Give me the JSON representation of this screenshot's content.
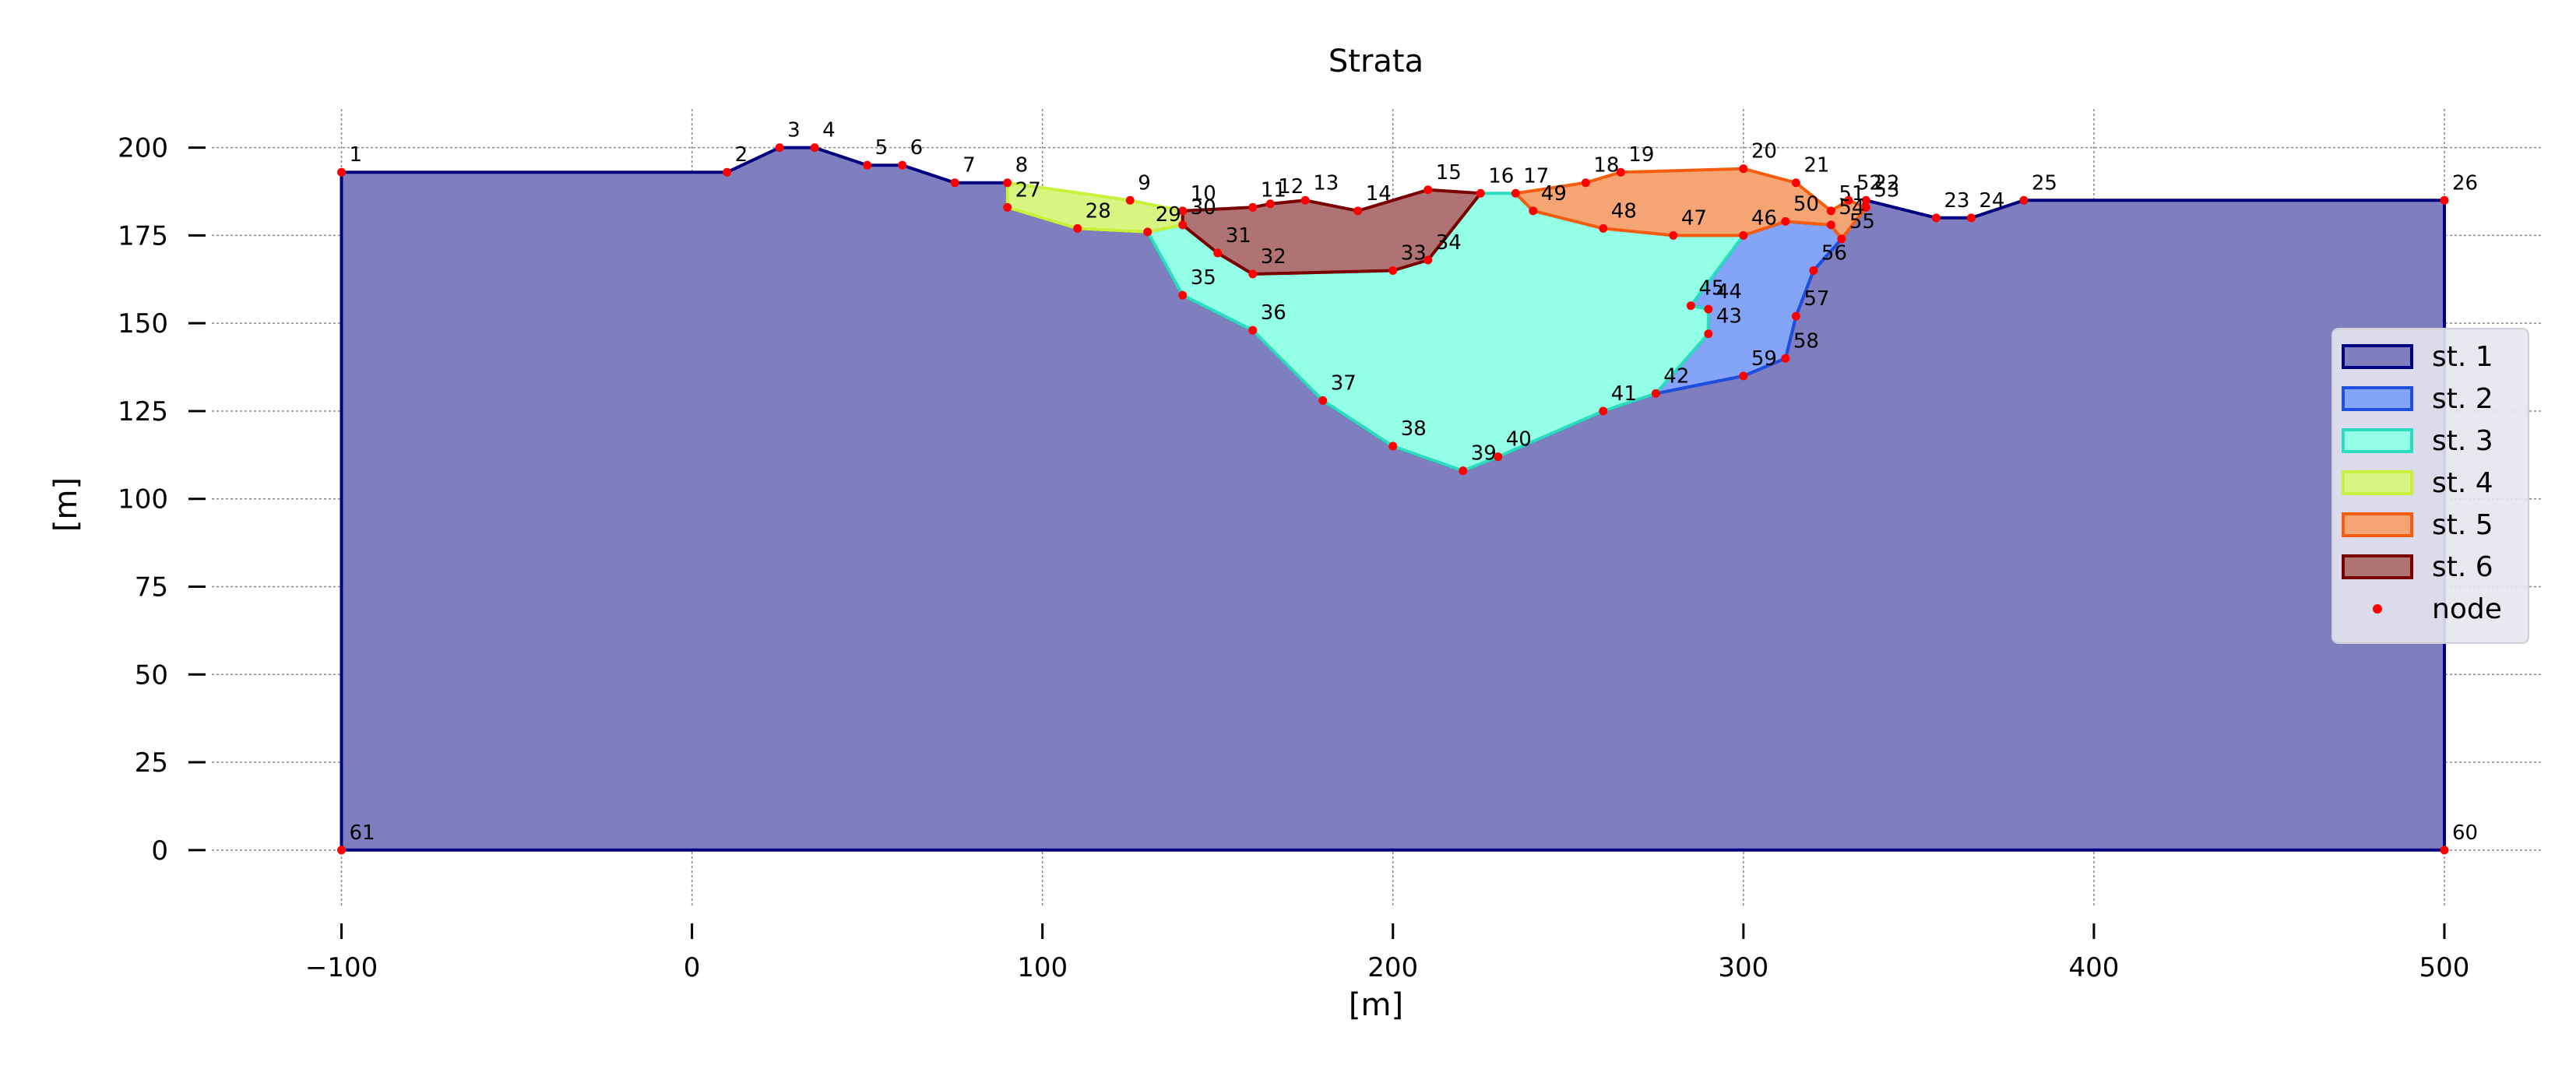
{
  "chart_data": {
    "type": "area",
    "title": "Strata",
    "xlabel": "[m]",
    "ylabel": "[m]",
    "xlim": [
      -137,
      528
    ],
    "ylim": [
      -16,
      211
    ],
    "xticks": [
      -100,
      0,
      100,
      200,
      300,
      400,
      500
    ],
    "yticks": [
      0,
      25,
      50,
      75,
      100,
      125,
      150,
      175,
      200
    ],
    "grid": true,
    "legend_placement": "right",
    "legend": [
      "st. 1",
      "st. 2",
      "st. 3",
      "st. 4",
      "st. 5",
      "st. 6",
      "node"
    ],
    "nodes": [
      {
        "id": "1",
        "x": -100,
        "y": 193
      },
      {
        "id": "2",
        "x": 10,
        "y": 193
      },
      {
        "id": "3",
        "x": 25,
        "y": 200
      },
      {
        "id": "4",
        "x": 35,
        "y": 200
      },
      {
        "id": "5",
        "x": 50,
        "y": 195
      },
      {
        "id": "6",
        "x": 60,
        "y": 195
      },
      {
        "id": "7",
        "x": 75,
        "y": 190
      },
      {
        "id": "8",
        "x": 90,
        "y": 190
      },
      {
        "id": "9",
        "x": 125,
        "y": 185
      },
      {
        "id": "10",
        "x": 140,
        "y": 182
      },
      {
        "id": "11",
        "x": 160,
        "y": 183
      },
      {
        "id": "12",
        "x": 165,
        "y": 184
      },
      {
        "id": "13",
        "x": 175,
        "y": 185
      },
      {
        "id": "14",
        "x": 190,
        "y": 182
      },
      {
        "id": "15",
        "x": 210,
        "y": 188
      },
      {
        "id": "16",
        "x": 225,
        "y": 187
      },
      {
        "id": "17",
        "x": 235,
        "y": 187
      },
      {
        "id": "18",
        "x": 255,
        "y": 190
      },
      {
        "id": "19",
        "x": 265,
        "y": 193
      },
      {
        "id": "20",
        "x": 300,
        "y": 194
      },
      {
        "id": "21",
        "x": 315,
        "y": 190
      },
      {
        "id": "22",
        "x": 335,
        "y": 185
      },
      {
        "id": "23",
        "x": 355,
        "y": 180
      },
      {
        "id": "24",
        "x": 365,
        "y": 180
      },
      {
        "id": "25",
        "x": 380,
        "y": 185
      },
      {
        "id": "26",
        "x": 500,
        "y": 185
      },
      {
        "id": "27",
        "x": 90,
        "y": 183
      },
      {
        "id": "28",
        "x": 110,
        "y": 177
      },
      {
        "id": "29",
        "x": 130,
        "y": 176
      },
      {
        "id": "30",
        "x": 140,
        "y": 178
      },
      {
        "id": "31",
        "x": 150,
        "y": 170
      },
      {
        "id": "32",
        "x": 160,
        "y": 164
      },
      {
        "id": "33",
        "x": 200,
        "y": 165
      },
      {
        "id": "34",
        "x": 210,
        "y": 168
      },
      {
        "id": "35",
        "x": 140,
        "y": 158
      },
      {
        "id": "36",
        "x": 160,
        "y": 148
      },
      {
        "id": "37",
        "x": 180,
        "y": 128
      },
      {
        "id": "38",
        "x": 200,
        "y": 115
      },
      {
        "id": "39",
        "x": 220,
        "y": 108
      },
      {
        "id": "40",
        "x": 230,
        "y": 112
      },
      {
        "id": "41",
        "x": 260,
        "y": 125
      },
      {
        "id": "42",
        "x": 275,
        "y": 130
      },
      {
        "id": "43",
        "x": 290,
        "y": 147
      },
      {
        "id": "44",
        "x": 290,
        "y": 154
      },
      {
        "id": "45",
        "x": 285,
        "y": 155
      },
      {
        "id": "46",
        "x": 300,
        "y": 175
      },
      {
        "id": "47",
        "x": 280,
        "y": 175
      },
      {
        "id": "48",
        "x": 260,
        "y": 177
      },
      {
        "id": "49",
        "x": 240,
        "y": 182
      },
      {
        "id": "50",
        "x": 312,
        "y": 179
      },
      {
        "id": "51",
        "x": 325,
        "y": 182
      },
      {
        "id": "52",
        "x": 330,
        "y": 185
      },
      {
        "id": "53",
        "x": 335,
        "y": 183
      },
      {
        "id": "54",
        "x": 325,
        "y": 178
      },
      {
        "id": "55",
        "x": 328,
        "y": 174
      },
      {
        "id": "56",
        "x": 320,
        "y": 165
      },
      {
        "id": "57",
        "x": 315,
        "y": 152
      },
      {
        "id": "58",
        "x": 312,
        "y": 140
      },
      {
        "id": "59",
        "x": 300,
        "y": 135
      },
      {
        "id": "60",
        "x": 500,
        "y": 0
      },
      {
        "id": "61",
        "x": -100,
        "y": 0
      }
    ],
    "strata": [
      {
        "name": "st. 1",
        "edge": "#000080",
        "fill": "#7f7fbf",
        "nodes": [
          "1",
          "2",
          "3",
          "4",
          "5",
          "6",
          "7",
          "8",
          "27",
          "28",
          "29",
          "35",
          "36",
          "37",
          "38",
          "39",
          "40",
          "41",
          "42",
          "59",
          "58",
          "57",
          "56",
          "55",
          "22",
          "23",
          "24",
          "25",
          "26",
          "60",
          "61"
        ]
      },
      {
        "name": "st. 2",
        "edge": "#1e4fe0",
        "fill": "#84a4f8",
        "nodes": [
          "46",
          "50",
          "54",
          "55",
          "56",
          "57",
          "58",
          "59",
          "42",
          "43",
          "44",
          "45"
        ]
      },
      {
        "name": "st. 3",
        "edge": "#2bdcbf",
        "fill": "#92ffe6",
        "nodes": [
          "29",
          "30",
          "31",
          "32",
          "33",
          "34",
          "16",
          "17",
          "49",
          "48",
          "47",
          "46",
          "45",
          "44",
          "43",
          "42",
          "41",
          "40",
          "39",
          "38",
          "37",
          "36",
          "35"
        ]
      },
      {
        "name": "st. 4",
        "edge": "#c9f03a",
        "fill": "#d8f582",
        "nodes": [
          "8",
          "9",
          "10",
          "30",
          "29",
          "28",
          "27"
        ]
      },
      {
        "name": "st. 5",
        "edge": "#f45d10",
        "fill": "#f5a574",
        "nodes": [
          "17",
          "18",
          "19",
          "20",
          "21",
          "51",
          "52",
          "53",
          "55",
          "54",
          "50",
          "46",
          "47",
          "48",
          "49"
        ]
      },
      {
        "name": "st. 6",
        "edge": "#7a0000",
        "fill": "#b07373",
        "nodes": [
          "10",
          "11",
          "12",
          "13",
          "14",
          "15",
          "16",
          "34",
          "33",
          "32",
          "31",
          "30"
        ]
      }
    ]
  }
}
